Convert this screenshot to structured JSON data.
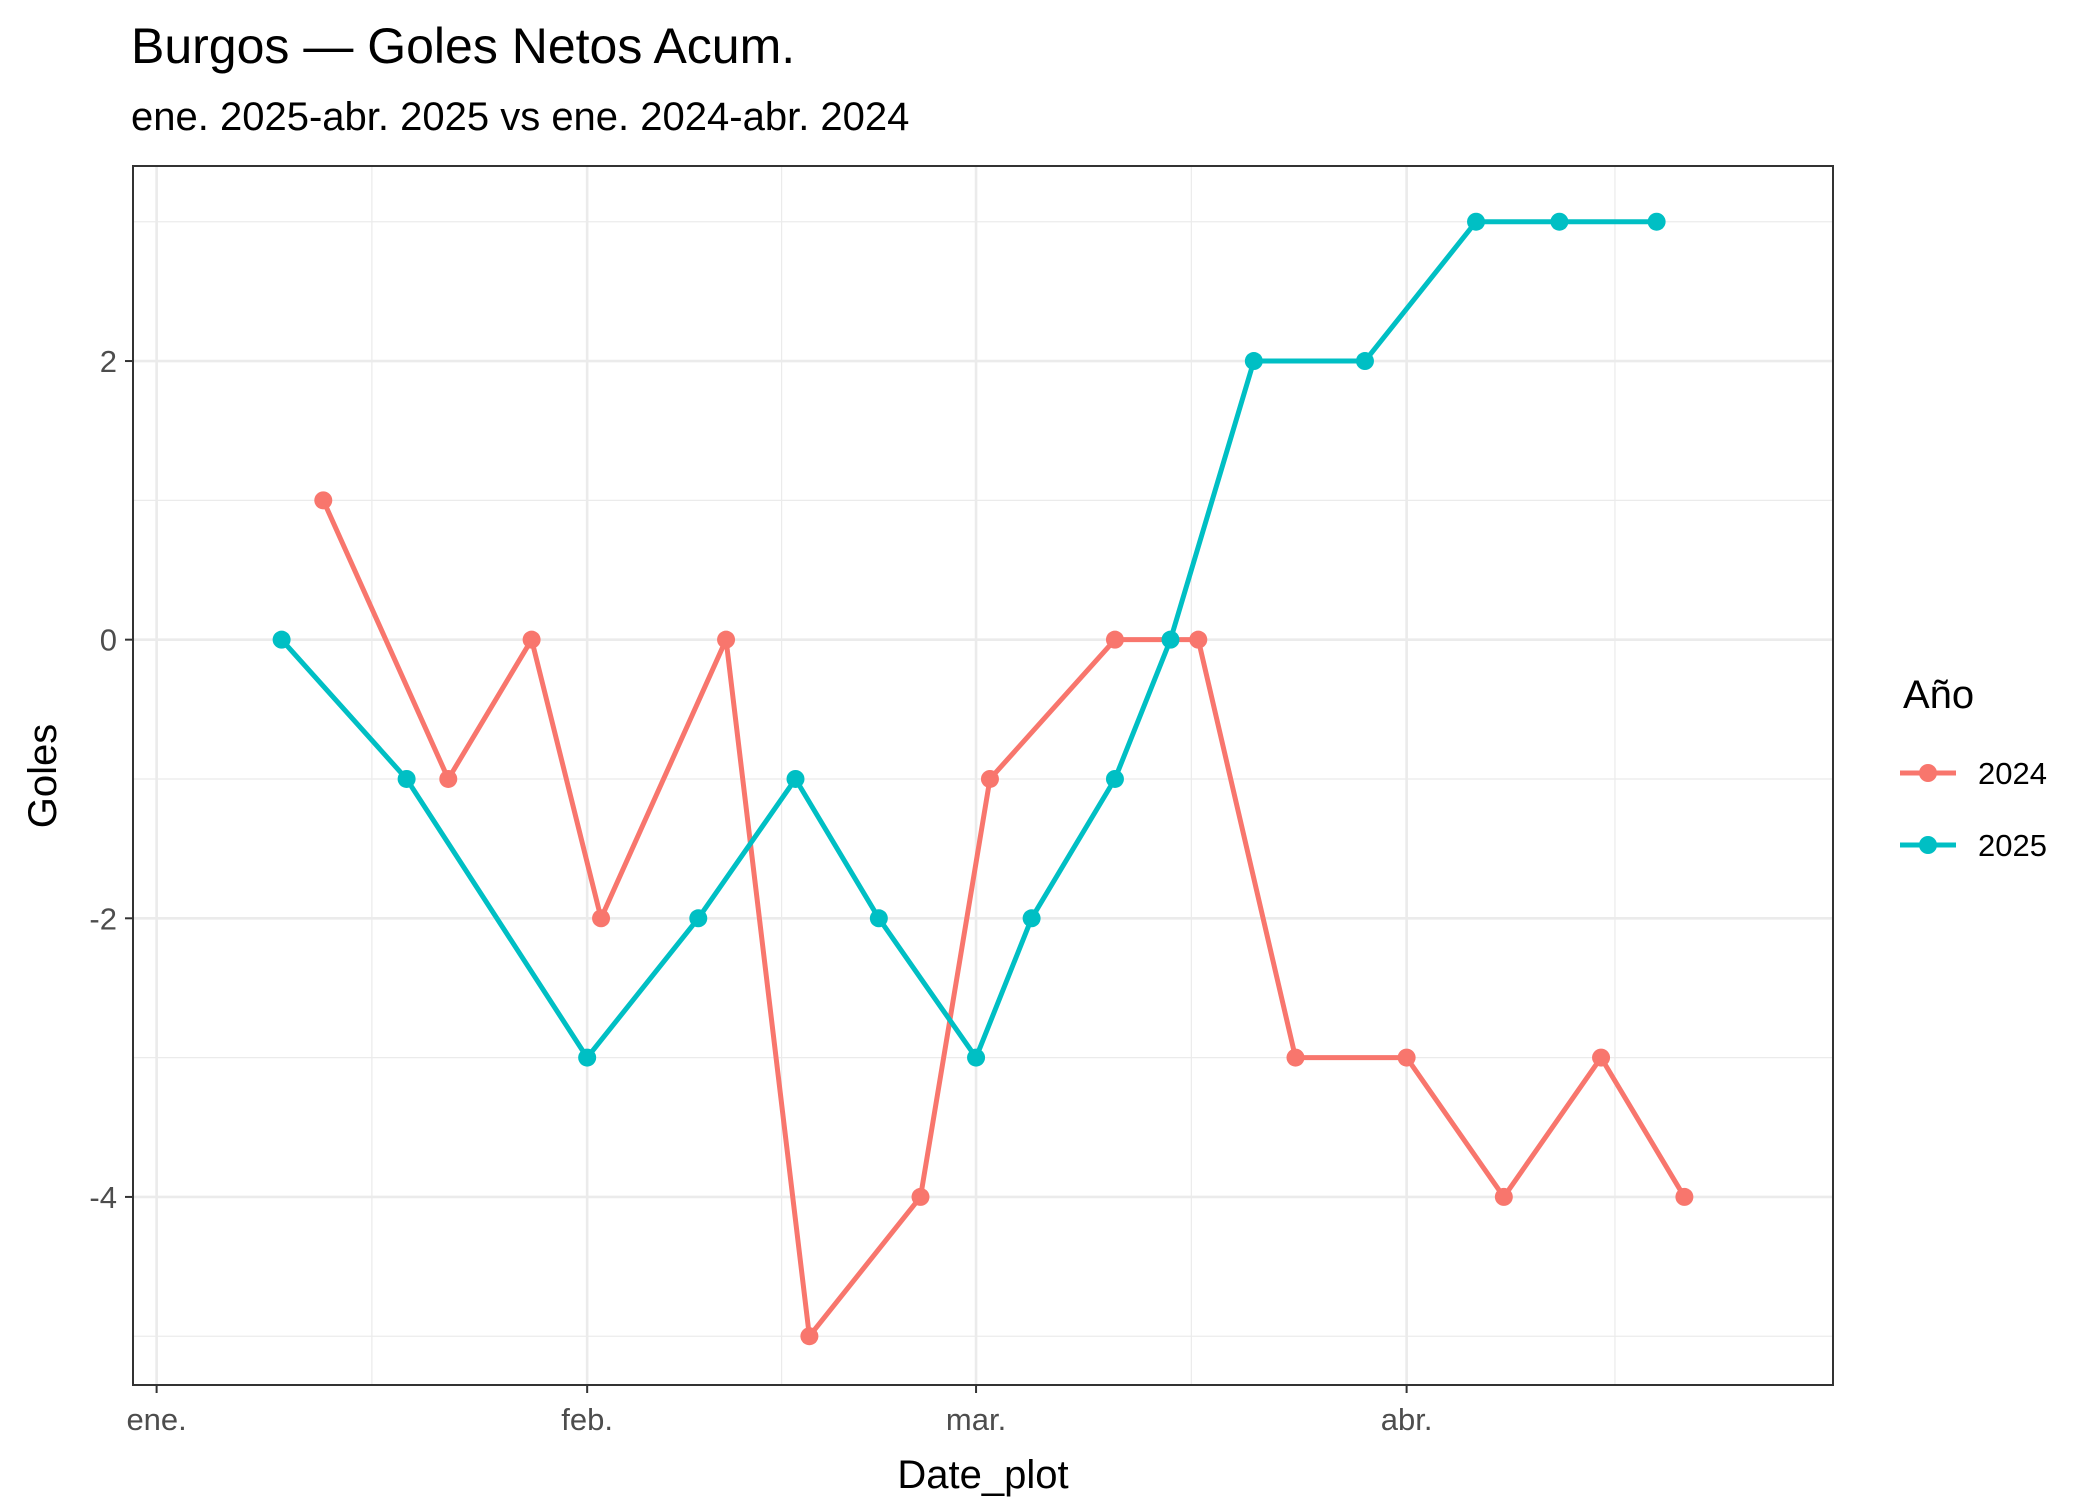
{
  "chart_data": {
    "type": "line",
    "title": "Burgos — Goles Netos Acum.",
    "subtitle": "ene. 2025-abr. 2025 vs ene. 2024-abr. 2024",
    "xlabel": "Date_plot",
    "ylabel": "Goles",
    "x_unit": "day of year (1 = 1 ene.)",
    "xlim": [
      -0.7,
      121.7
    ],
    "ylim": [
      -5.35,
      3.4
    ],
    "x_ticks": [
      {
        "label": "ene.",
        "value": 1
      },
      {
        "label": "feb.",
        "value": 32
      },
      {
        "label": "mar.",
        "value": 60
      },
      {
        "label": "abr.",
        "value": 91
      }
    ],
    "x_minor_ticks": [
      16.5,
      46,
      75.5,
      106
    ],
    "y_ticks": [
      -4,
      -2,
      0,
      2
    ],
    "y_minor_ticks": [
      -5,
      -3,
      -1,
      1,
      3
    ],
    "grid": true,
    "legend": {
      "title": "Año",
      "position": "right"
    },
    "series": [
      {
        "name": "2024",
        "color": "#F8766D",
        "x": [
          13,
          22,
          28,
          33,
          42,
          48,
          56,
          61,
          70,
          76,
          83,
          91,
          98,
          105,
          111
        ],
        "y": [
          1,
          -1,
          0,
          -2,
          0,
          -5,
          -4,
          -1,
          0,
          0,
          -3,
          -3,
          -4,
          -3,
          -4
        ]
      },
      {
        "name": "2025",
        "color": "#00BFC4",
        "x": [
          10,
          19,
          32,
          40,
          47,
          53,
          60,
          64,
          70,
          74,
          80,
          88,
          96,
          102,
          109
        ],
        "y": [
          0,
          -1,
          -3,
          -2,
          -1,
          -2,
          -3,
          -2,
          -1,
          0,
          2,
          2,
          3,
          3,
          3
        ]
      }
    ]
  }
}
